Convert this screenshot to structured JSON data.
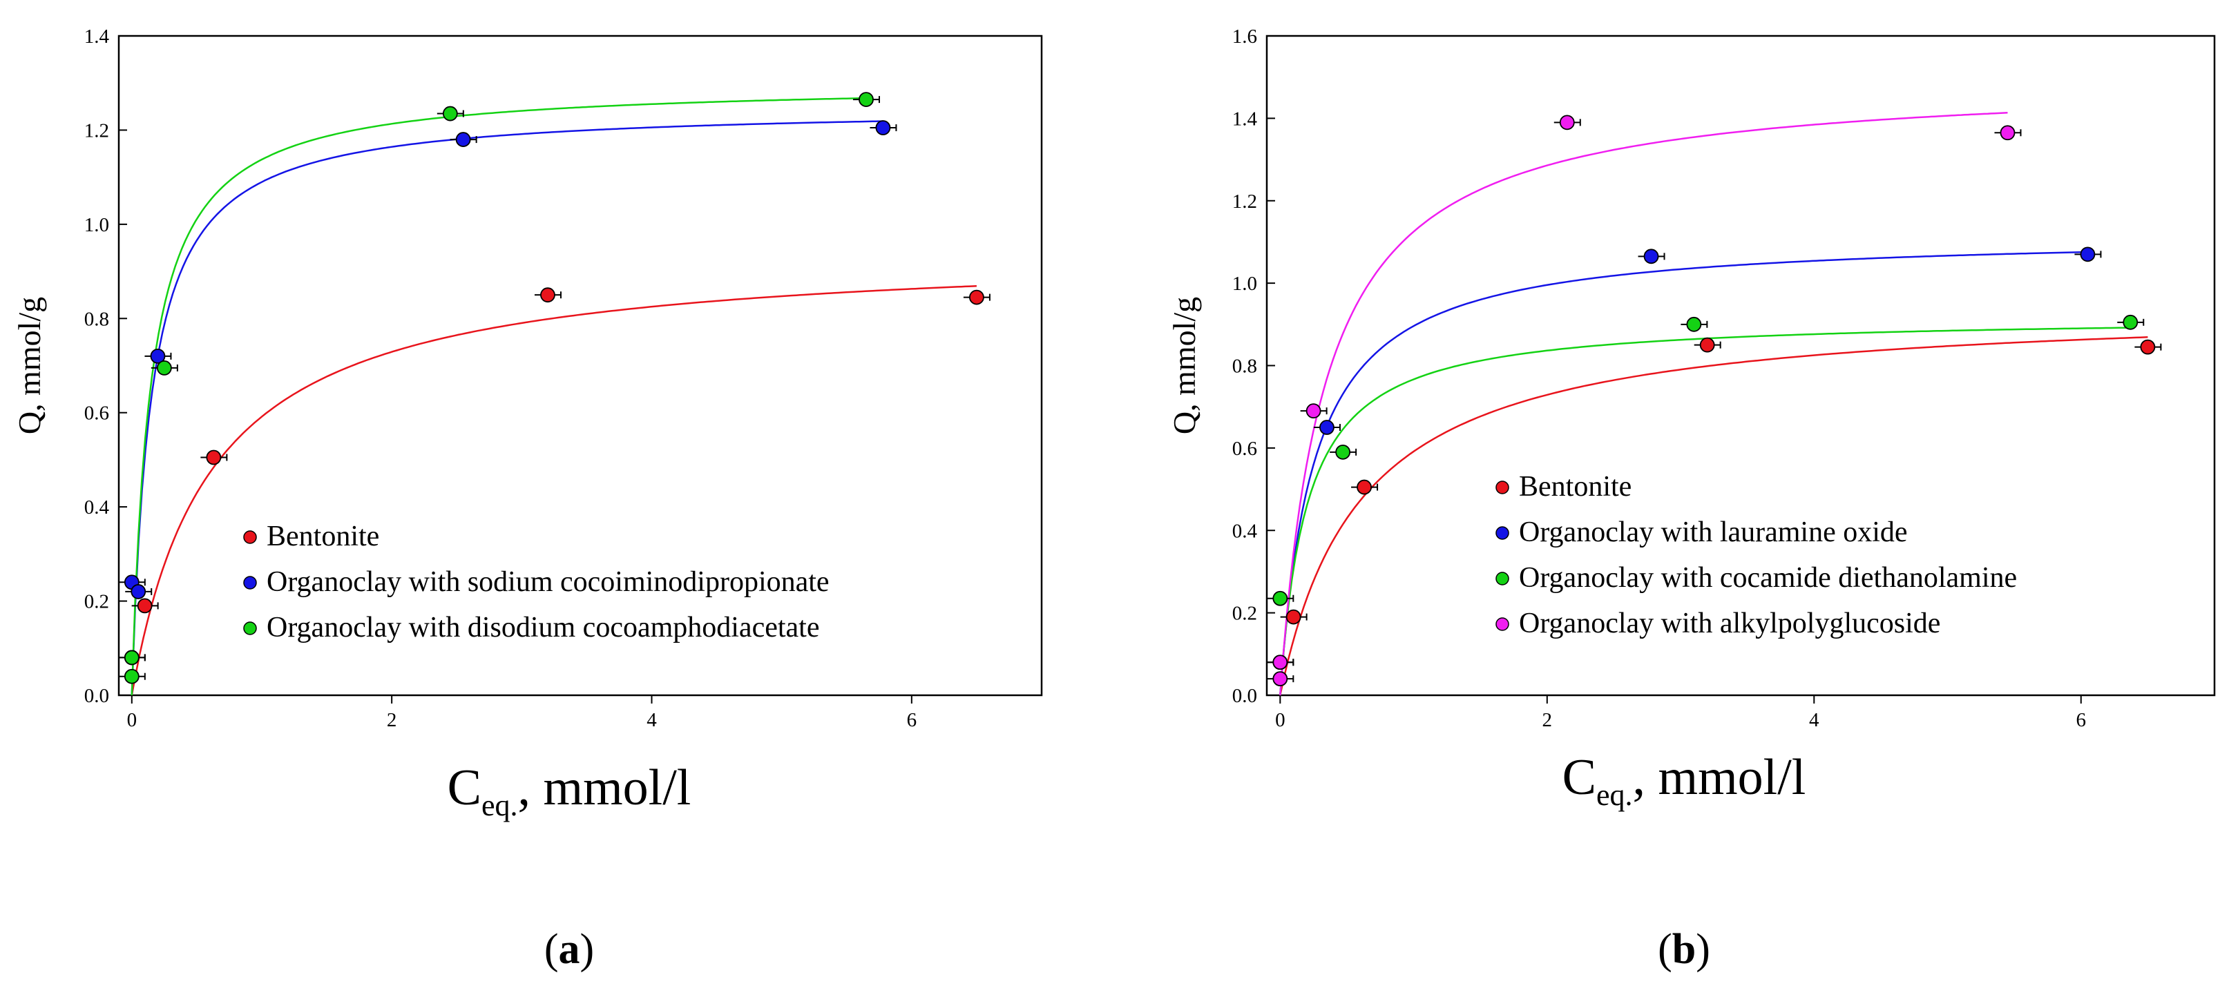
{
  "chart_data": [
    {
      "id": "a",
      "type": "scatter",
      "panel_label": "a",
      "xlabel_main": "C",
      "xlabel_sub": "eq.",
      "xlabel_rest": ", mmol/l",
      "ylabel": "Q, mmol/g",
      "xlim": [
        -0.1,
        7.0
      ],
      "ylim": [
        0.0,
        1.4
      ],
      "xticks": [
        0,
        2,
        4,
        6
      ],
      "yticks": [
        "0.0",
        "0.2",
        "0.4",
        "0.6",
        "0.8",
        "1.0",
        "1.2",
        "1.4"
      ],
      "legend_position": "lower-left",
      "series": [
        {
          "name": "Bentonite",
          "color": "#e8141c",
          "x": [
            0.0,
            0.1,
            0.63,
            3.2,
            6.5
          ],
          "y": [
            0.08,
            0.19,
            0.505,
            0.85,
            0.845
          ],
          "fit": {
            "model": "langmuir",
            "qmax": 0.95,
            "k": 1.65,
            "xmax": 6.5
          }
        },
        {
          "name": "Organoclay with sodium cocoiminodipropionate",
          "color": "#1414e6",
          "x": [
            0.0,
            0.05,
            0.2,
            2.55,
            5.78
          ],
          "y": [
            0.24,
            0.22,
            0.72,
            1.18,
            1.205
          ],
          "fit": {
            "model": "langmuir",
            "qmax": 1.25,
            "k": 6.8,
            "xmax": 5.78
          }
        },
        {
          "name": "Organoclay with disodium cocoamphodiacetate",
          "color": "#14d214",
          "x": [
            0.0,
            0.0,
            0.25,
            2.45,
            5.65
          ],
          "y": [
            0.04,
            0.08,
            0.695,
            1.235,
            1.265
          ],
          "fit": {
            "model": "langmuir",
            "qmax": 1.3,
            "k": 7.0,
            "xmax": 5.65
          }
        }
      ]
    },
    {
      "id": "b",
      "type": "scatter",
      "panel_label": "b",
      "xlabel_main": "C",
      "xlabel_sub": "eq.",
      "xlabel_rest": ", mmol/l",
      "ylabel": "Q, mmol/g",
      "xlim": [
        -0.1,
        7.0
      ],
      "ylim": [
        0.0,
        1.6
      ],
      "xticks": [
        0,
        2,
        4,
        6
      ],
      "yticks": [
        "0.0",
        "0.2",
        "0.4",
        "0.6",
        "0.8",
        "1.0",
        "1.2",
        "1.4",
        "1.6"
      ],
      "legend_position": "lower-center",
      "series": [
        {
          "name": "Bentonite",
          "color": "#e8141c",
          "x": [
            0.0,
            0.1,
            0.63,
            3.2,
            6.5
          ],
          "y": [
            0.08,
            0.19,
            0.505,
            0.85,
            0.845
          ],
          "fit": {
            "model": "langmuir",
            "qmax": 0.95,
            "k": 1.65,
            "xmax": 6.5
          }
        },
        {
          "name": "Organoclay with lauramine oxide",
          "color": "#1414e6",
          "x": [
            0.35,
            2.78,
            6.05
          ],
          "y": [
            0.65,
            1.065,
            1.07
          ],
          "fit": {
            "model": "langmuir",
            "qmax": 1.12,
            "k": 4.0,
            "xmax": 6.05
          }
        },
        {
          "name": "Organoclay with cocamide diethanolamine",
          "color": "#14d214",
          "x": [
            0.0,
            0.47,
            3.1,
            6.37
          ],
          "y": [
            0.235,
            0.59,
            0.9,
            0.905
          ],
          "fit": {
            "model": "langmuir",
            "qmax": 0.92,
            "k": 5.0,
            "xmax": 6.37
          }
        },
        {
          "name": "Organoclay with alkylpolyglucoside",
          "color": "#f01ef0",
          "x": [
            0.0,
            0.0,
            0.25,
            2.15,
            5.45
          ],
          "y": [
            0.04,
            0.08,
            0.69,
            1.39,
            1.365
          ],
          "fit": {
            "model": "langmuir",
            "qmax": 1.5,
            "k": 3.0,
            "xmax": 5.45
          }
        }
      ]
    }
  ]
}
